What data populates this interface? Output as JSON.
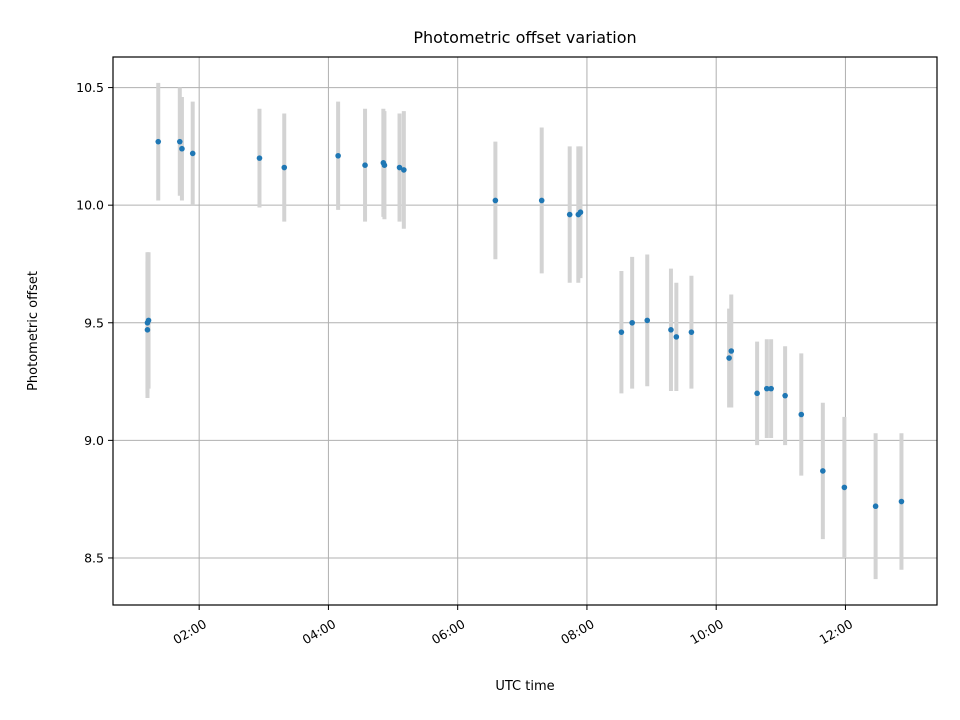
{
  "chart_data": {
    "type": "scatter",
    "title": "Photometric offset variation",
    "xlabel": "UTC time",
    "ylabel": "Photometric offset",
    "x_unit": "hours UTC",
    "xlim": [
      "00:40",
      "13:25"
    ],
    "ylim": [
      8.3,
      10.63
    ],
    "x_ticks": [
      "02:00",
      "04:00",
      "06:00",
      "08:00",
      "10:00",
      "12:00"
    ],
    "y_ticks": [
      "8.5",
      "9.0",
      "9.5",
      "10.0",
      "10.5"
    ],
    "grid": true,
    "legend": "none",
    "colors": {
      "points": "#1f77b4",
      "errorbars": "#d3d3d3",
      "grid": "#b0b0b0"
    },
    "series": [
      {
        "points": [
          {
            "x": "01:12",
            "y": 9.47,
            "err": 0.29
          },
          {
            "x": "01:12",
            "y": 9.5,
            "err": 0.3
          },
          {
            "x": "01:13",
            "y": 9.51,
            "err": 0.29
          },
          {
            "x": "01:22",
            "y": 10.27,
            "err": 0.25
          },
          {
            "x": "01:42",
            "y": 10.27,
            "err": 0.23
          },
          {
            "x": "01:44",
            "y": 10.24,
            "err": 0.22
          },
          {
            "x": "01:54",
            "y": 10.22,
            "err": 0.22
          },
          {
            "x": "02:56",
            "y": 10.2,
            "err": 0.21
          },
          {
            "x": "03:19",
            "y": 10.16,
            "err": 0.23
          },
          {
            "x": "04:09",
            "y": 10.21,
            "err": 0.23
          },
          {
            "x": "04:34",
            "y": 10.17,
            "err": 0.24
          },
          {
            "x": "04:51",
            "y": 10.18,
            "err": 0.23
          },
          {
            "x": "04:52",
            "y": 10.17,
            "err": 0.23
          },
          {
            "x": "05:06",
            "y": 10.16,
            "err": 0.23
          },
          {
            "x": "05:10",
            "y": 10.15,
            "err": 0.25
          },
          {
            "x": "06:35",
            "y": 10.02,
            "err": 0.25
          },
          {
            "x": "07:18",
            "y": 10.02,
            "err": 0.31
          },
          {
            "x": "07:44",
            "y": 9.96,
            "err": 0.29
          },
          {
            "x": "07:52",
            "y": 9.96,
            "err": 0.29
          },
          {
            "x": "07:54",
            "y": 9.97,
            "err": 0.28
          },
          {
            "x": "08:32",
            "y": 9.46,
            "err": 0.26
          },
          {
            "x": "08:42",
            "y": 9.5,
            "err": 0.28
          },
          {
            "x": "08:56",
            "y": 9.51,
            "err": 0.28
          },
          {
            "x": "09:18",
            "y": 9.47,
            "err": 0.26
          },
          {
            "x": "09:23",
            "y": 9.44,
            "err": 0.23
          },
          {
            "x": "09:37",
            "y": 9.46,
            "err": 0.24
          },
          {
            "x": "10:12",
            "y": 9.35,
            "err": 0.21
          },
          {
            "x": "10:14",
            "y": 9.38,
            "err": 0.24
          },
          {
            "x": "10:38",
            "y": 9.2,
            "err": 0.22
          },
          {
            "x": "10:47",
            "y": 9.22,
            "err": 0.21
          },
          {
            "x": "10:51",
            "y": 9.22,
            "err": 0.21
          },
          {
            "x": "11:04",
            "y": 9.19,
            "err": 0.21
          },
          {
            "x": "11:19",
            "y": 9.11,
            "err": 0.26
          },
          {
            "x": "11:39",
            "y": 8.87,
            "err": 0.29
          },
          {
            "x": "11:59",
            "y": 8.8,
            "err": 0.3
          },
          {
            "x": "12:28",
            "y": 8.72,
            "err": 0.31
          },
          {
            "x": "12:52",
            "y": 8.74,
            "err": 0.29
          }
        ]
      }
    ]
  }
}
